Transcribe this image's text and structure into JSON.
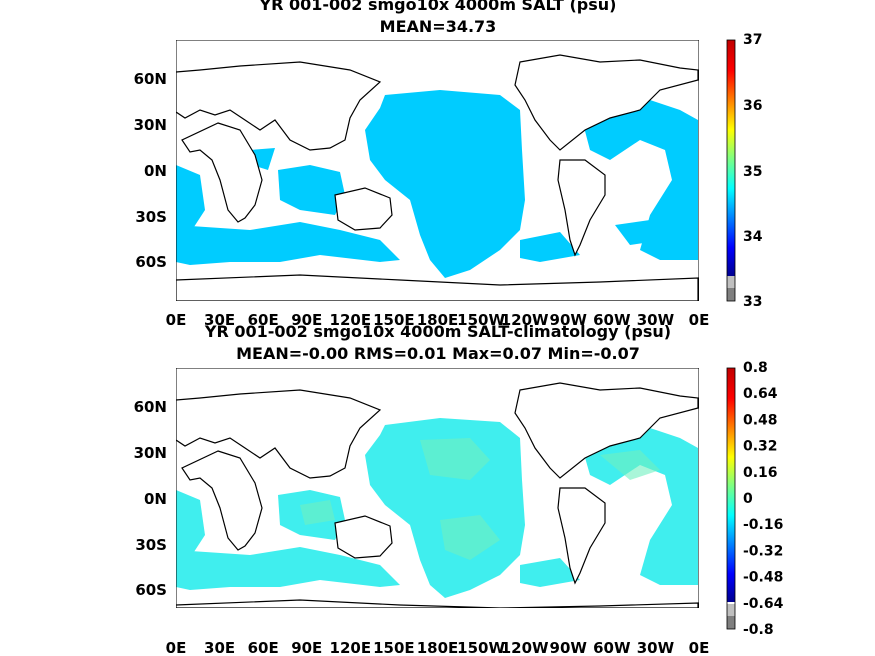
{
  "chart_data": [
    {
      "type": "heatmap",
      "title_line1": "YR 001-002 smgo10x 4000m SALT (psu)",
      "title_line2": "MEAN=34.73",
      "xticks": [
        "0E",
        "30E",
        "60E",
        "90E",
        "120E",
        "150E",
        "180E",
        "150W",
        "120W",
        "90W",
        "60W",
        "30W",
        "0E"
      ],
      "yticks": [
        "60N",
        "30N",
        "0N",
        "30S",
        "60S"
      ],
      "ytick_lat": [
        60,
        30,
        0,
        -30,
        -60
      ],
      "colorbar": {
        "ticks": [
          "37",
          "36",
          "35",
          "34",
          "33"
        ],
        "range": [
          33,
          37
        ],
        "colors": [
          "#7f7f7f",
          "#bfbfbf",
          "#00008f",
          "#0000ff",
          "#0080ff",
          "#00ffff",
          "#80ff80",
          "#ffff00",
          "#ff8000",
          "#ff0000",
          "#800000"
        ]
      },
      "field_color": "#00ccff"
    },
    {
      "type": "heatmap",
      "title_line1": "YR 001-002 smgo10x 4000m SALT-climatology (psu)",
      "title_line2": "MEAN=-0.00   RMS=0.01   Max=0.07   Min=-0.07",
      "xticks": [
        "0E",
        "30E",
        "60E",
        "90E",
        "120E",
        "150E",
        "180E",
        "150W",
        "120W",
        "90W",
        "60W",
        "30W",
        "0E"
      ],
      "yticks": [
        "60N",
        "30N",
        "0N",
        "30S",
        "60S"
      ],
      "ytick_lat": [
        60,
        30,
        0,
        -30,
        -60
      ],
      "colorbar": {
        "ticks": [
          "0.8",
          "0.64",
          "0.48",
          "0.32",
          "0.16",
          "0",
          "-0.16",
          "-0.32",
          "-0.48",
          "-0.64",
          "-0.8"
        ],
        "range": [
          -0.8,
          0.8
        ],
        "colors": [
          "#7f7f7f",
          "#bfbfbf",
          "#00008f",
          "#0000ff",
          "#0080ff",
          "#00ffff",
          "#80ff80",
          "#ffff00",
          "#ff8000",
          "#ff0000",
          "#800000"
        ]
      },
      "field_color": "#40eeee",
      "field_color2": "#70f0c0"
    }
  ]
}
